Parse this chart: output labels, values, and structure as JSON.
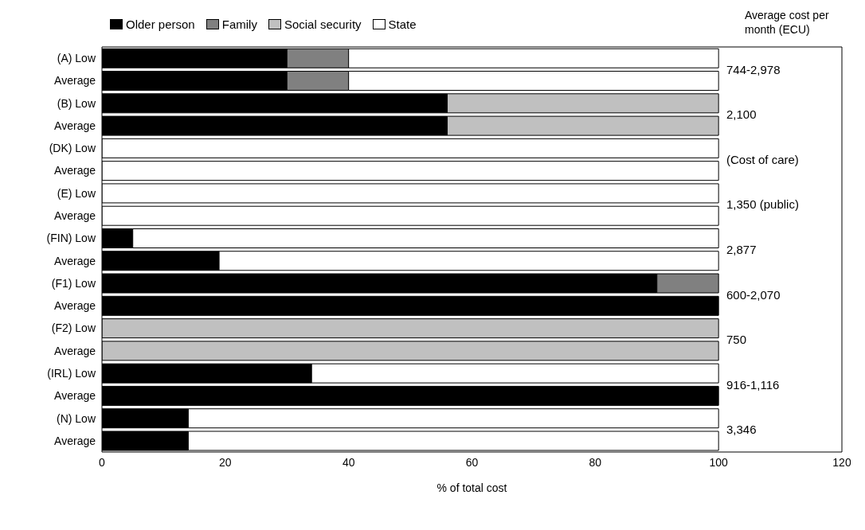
{
  "chart_data": {
    "type": "bar",
    "orientation": "horizontal",
    "stacked": true,
    "categories": [
      "(A) Low",
      "Average",
      "(B) Low",
      "Average",
      "(DK) Low",
      "Average",
      "(E) Low",
      "Average",
      "(FIN) Low",
      "Average",
      "(F1) Low",
      "Average",
      "(F2) Low",
      "Average",
      "(IRL) Low",
      "Average",
      "(N) Low",
      "Average"
    ],
    "series": [
      {
        "name": "Older person",
        "color": "#000000",
        "values": [
          30,
          30,
          56,
          56,
          0,
          0,
          0,
          0,
          5,
          19,
          90,
          100,
          0,
          0,
          34,
          100,
          14,
          14
        ]
      },
      {
        "name": "Family",
        "color": "#808080",
        "values": [
          10,
          10,
          0,
          0,
          0,
          0,
          0,
          0,
          0,
          0,
          10,
          0,
          0,
          0,
          0,
          0,
          0,
          0
        ]
      },
      {
        "name": "Social security",
        "color": "#c0c0c0",
        "values": [
          0,
          0,
          44,
          44,
          0,
          0,
          0,
          0,
          0,
          0,
          0,
          0,
          100,
          100,
          0,
          0,
          0,
          0
        ]
      },
      {
        "name": "State",
        "color": "#ffffff",
        "values": [
          60,
          60,
          0,
          0,
          100,
          100,
          100,
          100,
          95,
          81,
          0,
          0,
          0,
          0,
          66,
          0,
          86,
          86
        ]
      }
    ],
    "xlim": [
      0,
      120
    ],
    "xticks": [
      0,
      20,
      40,
      60,
      80,
      100,
      120
    ],
    "xlabel": "% of total cost",
    "legend": "top left",
    "annotations": [
      "Average cost per month (ECU)",
      "744-2,978",
      "2,100",
      "(Cost of care)",
      "1,350 (public)",
      "2,877",
      "600-2,070",
      "750",
      "916-1,116",
      "3,346"
    ]
  }
}
